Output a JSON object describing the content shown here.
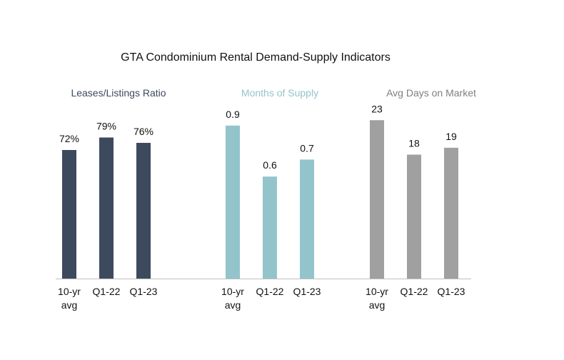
{
  "chart_data": {
    "title": "GTA Condominium Rental Demand-Supply Indicators",
    "panels": [
      {
        "type": "bar",
        "title": "Leases/Listings Ratio",
        "color": "#3d4a5e",
        "title_color": "#3d4a5e",
        "categories": [
          [
            "10-yr",
            "avg"
          ],
          [
            "Q1-22"
          ],
          [
            "Q1-23"
          ]
        ],
        "values": [
          72,
          79,
          76
        ],
        "labels": [
          "72%",
          "79%",
          "76%"
        ],
        "ylim": [
          0,
          100
        ]
      },
      {
        "type": "bar",
        "title": "Months of Supply",
        "color": "#93c4cb",
        "title_color": "#93c4cb",
        "categories": [
          [
            "10-yr",
            "avg"
          ],
          [
            "Q1-22"
          ],
          [
            "Q1-23"
          ]
        ],
        "values": [
          0.9,
          0.6,
          0.7
        ],
        "labels": [
          "0.9",
          "0.6",
          "0.7"
        ],
        "ylim": [
          0,
          1.0
        ]
      },
      {
        "type": "bar",
        "title": "Avg Days on Market",
        "color": "#a0a0a0",
        "title_color": "#7f7f7f",
        "categories": [
          [
            "10-yr",
            "avg"
          ],
          [
            "Q1-22"
          ],
          [
            "Q1-23"
          ]
        ],
        "values": [
          23,
          18,
          19
        ],
        "labels": [
          "23",
          "18",
          "19"
        ],
        "ylim": [
          0,
          25
        ]
      }
    ]
  }
}
